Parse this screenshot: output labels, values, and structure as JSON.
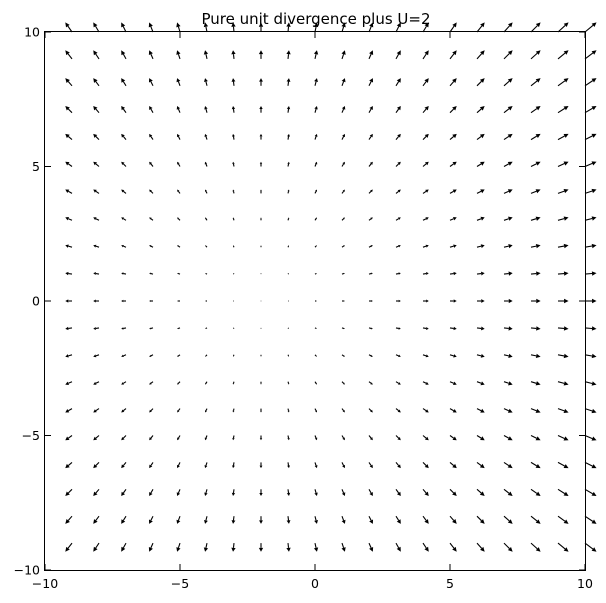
{
  "chart_data": {
    "type": "quiver",
    "title": "Pure unit divergence plus U=2",
    "xlabel": "",
    "ylabel": "",
    "xlim": [
      -10,
      10
    ],
    "ylim": [
      -10,
      10
    ],
    "grid": false,
    "field": {
      "u": "x + 2",
      "v": "y",
      "x": [
        -9,
        -8,
        -7,
        -6,
        -5,
        -4,
        -3,
        -2,
        -1,
        0,
        1,
        2,
        3,
        4,
        5,
        6,
        7,
        8,
        9,
        10
      ],
      "y": [
        -9,
        -8,
        -7,
        -6,
        -5,
        -4,
        -3,
        -2,
        -1,
        0,
        1,
        2,
        3,
        4,
        5,
        6,
        7,
        8,
        9,
        10
      ]
    },
    "x_ticks": [
      {
        "value": -10,
        "label": "−10"
      },
      {
        "value": -5,
        "label": "−5"
      },
      {
        "value": 0,
        "label": "0"
      },
      {
        "value": 5,
        "label": "5"
      },
      {
        "value": 10,
        "label": "10"
      }
    ],
    "y_ticks": [
      {
        "value": -10,
        "label": "−10"
      },
      {
        "value": -5,
        "label": "−5"
      },
      {
        "value": 0,
        "label": "0"
      },
      {
        "value": 5,
        "label": "5"
      },
      {
        "value": 10,
        "label": "10"
      }
    ],
    "arrow_color": "#000000"
  }
}
